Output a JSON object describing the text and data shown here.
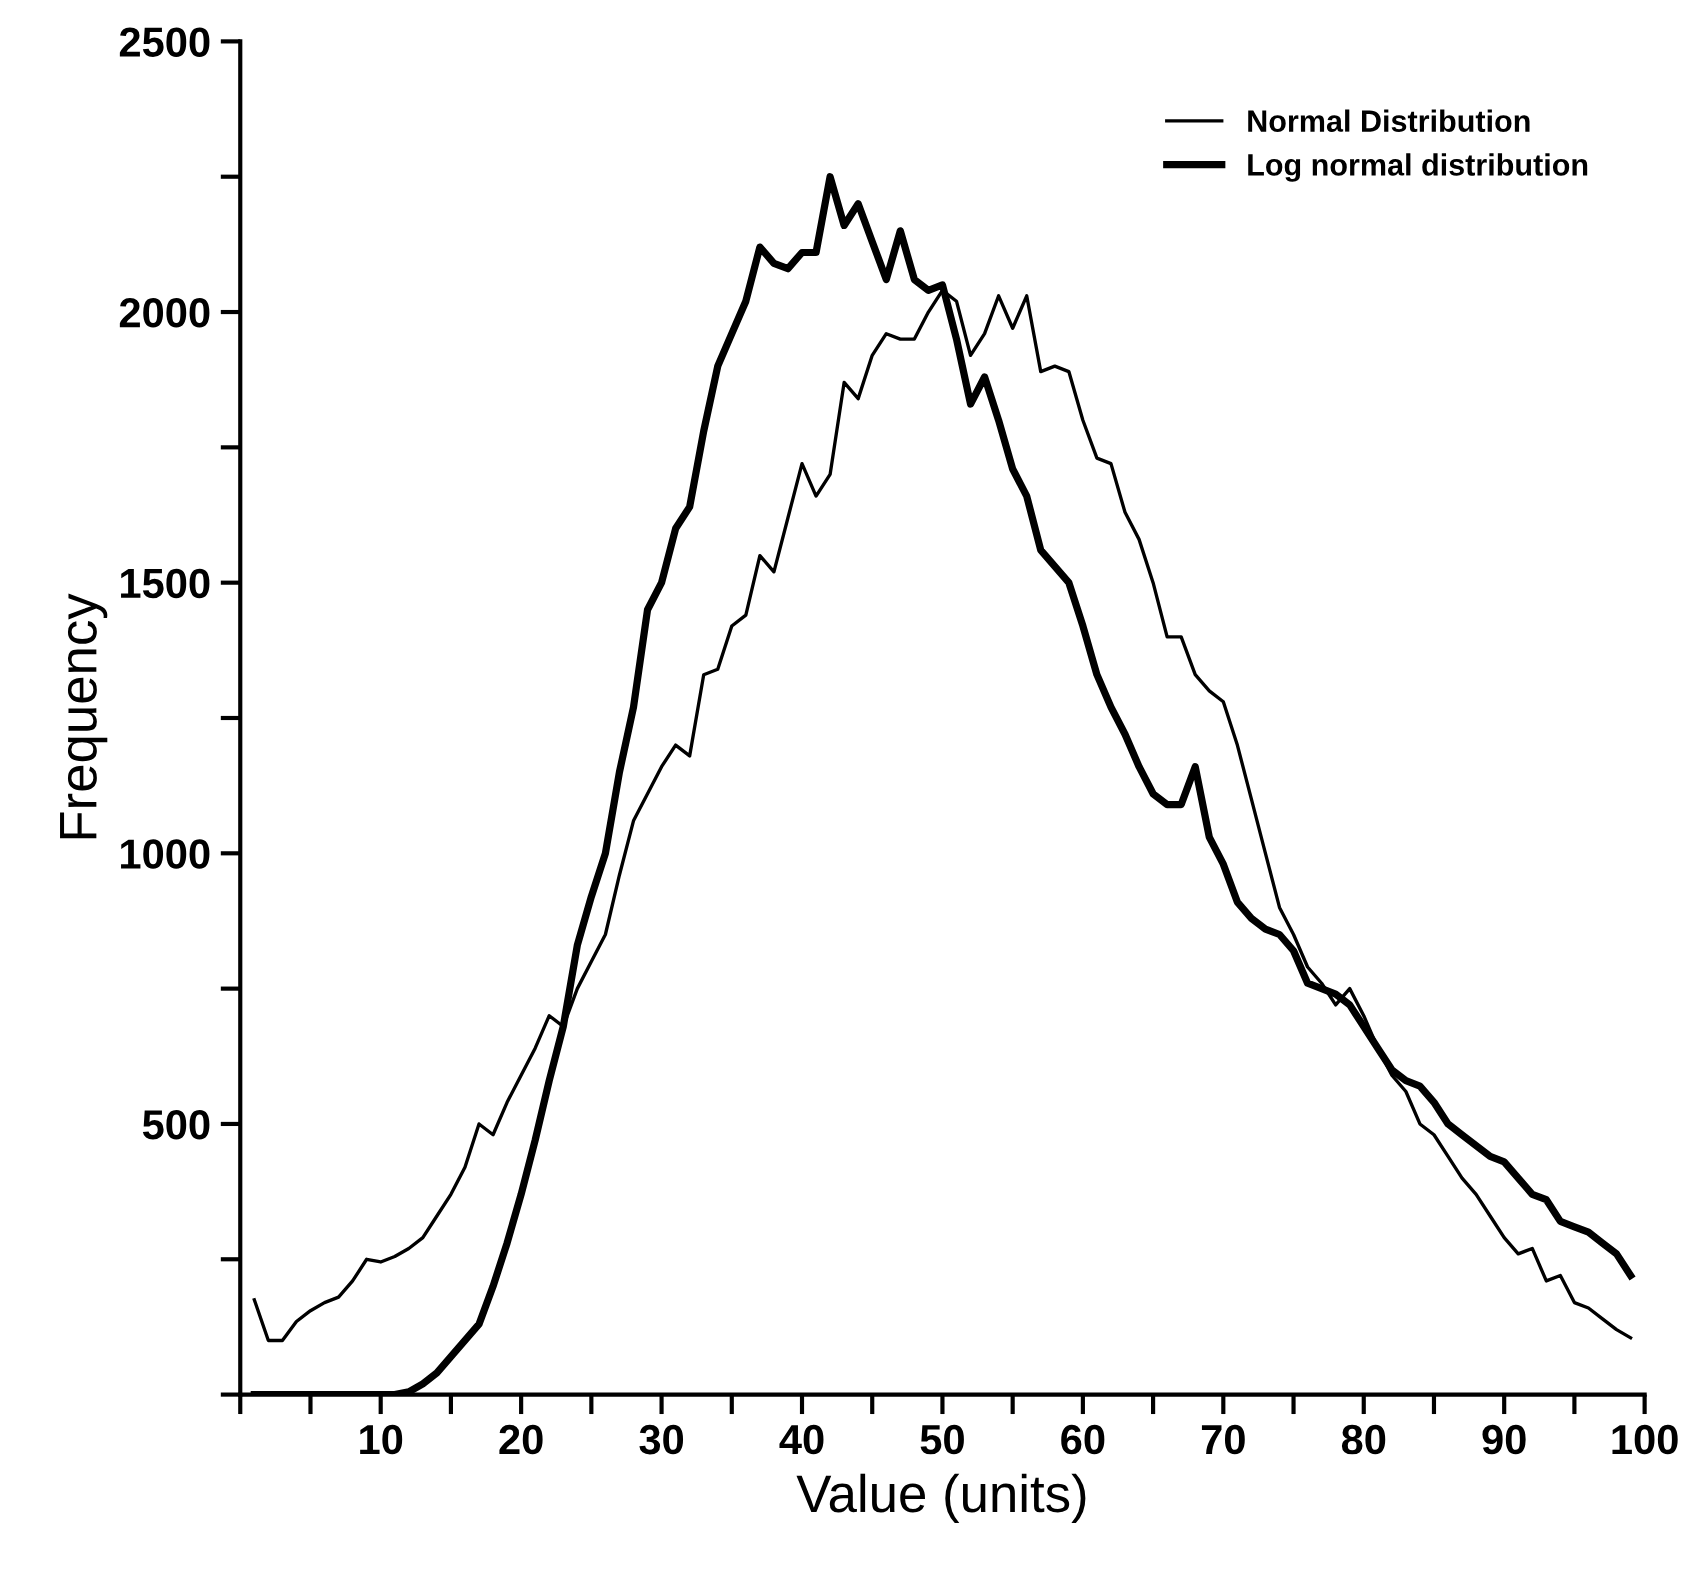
{
  "chart_data": {
    "type": "line",
    "xlabel": "Value (units)",
    "ylabel": "Frequency",
    "xlim": [
      0,
      100
    ],
    "ylim": [
      0,
      2500
    ],
    "xticks": [
      {
        "value": 0,
        "label": null
      },
      {
        "value": 5,
        "label": null
      },
      10,
      {
        "value": 15,
        "label": null
      },
      20,
      {
        "value": 25,
        "label": null
      },
      30,
      {
        "value": 35,
        "label": null
      },
      40,
      {
        "value": 45,
        "label": null
      },
      50,
      {
        "value": 55,
        "label": null
      },
      60,
      {
        "value": 65,
        "label": null
      },
      70,
      {
        "value": 75,
        "label": null
      },
      80,
      {
        "value": 85,
        "label": null
      },
      90,
      {
        "value": 95,
        "label": null
      },
      100
    ],
    "yticks": [
      {
        "value": 0,
        "label": null
      },
      {
        "value": 250,
        "label": null
      },
      500,
      {
        "value": 750,
        "label": null
      },
      1000,
      {
        "value": 1250,
        "label": null
      },
      1500,
      {
        "value": 1750,
        "label": null
      },
      2000,
      {
        "value": 2250,
        "label": null
      },
      2500
    ],
    "grid": false,
    "legend": "top right",
    "marker": "none",
    "line_style": "solid",
    "series": [
      {
        "name": "Normal Distribution",
        "color": "#000000",
        "x": [
          1,
          2,
          3,
          4,
          5,
          6,
          7,
          8,
          9,
          10,
          11,
          12,
          13,
          14,
          15,
          16,
          17,
          18,
          19,
          20,
          21,
          22,
          23,
          24,
          25,
          26,
          27,
          28,
          29,
          30,
          31,
          32,
          33,
          34,
          35,
          36,
          37,
          38,
          39,
          40,
          41,
          42,
          43,
          44,
          45,
          46,
          47,
          48,
          49,
          50,
          51,
          52,
          53,
          54,
          55,
          56,
          57,
          58,
          59,
          60,
          61,
          62,
          63,
          64,
          65,
          66,
          67,
          68,
          69,
          70,
          71,
          72,
          73,
          74,
          75,
          76,
          77,
          78,
          79,
          80,
          81,
          82,
          83,
          84,
          85,
          86,
          87,
          88,
          89,
          90,
          91,
          92,
          93,
          94,
          95,
          96,
          97,
          98,
          99
        ],
        "values": [
          175,
          100,
          100,
          135,
          155,
          170,
          180,
          210,
          250,
          245,
          255,
          270,
          290,
          330,
          370,
          420,
          500,
          480,
          540,
          590,
          640,
          700,
          680,
          750,
          800,
          850,
          960,
          1060,
          1110,
          1160,
          1200,
          1180,
          1330,
          1340,
          1420,
          1440,
          1550,
          1520,
          1620,
          1720,
          1660,
          1700,
          1870,
          1840,
          1920,
          1960,
          1950,
          1950,
          2000,
          2040,
          2020,
          1920,
          1960,
          2030,
          1970,
          2030,
          1890,
          1900,
          1890,
          1800,
          1730,
          1720,
          1630,
          1580,
          1500,
          1400,
          1400,
          1330,
          1300,
          1280,
          1200,
          1100,
          1000,
          900,
          850,
          790,
          760,
          720,
          750,
          700,
          640,
          590,
          560,
          500,
          480,
          440,
          400,
          370,
          330,
          290,
          260,
          270,
          210,
          220,
          170,
          160,
          140,
          120,
          105
        ]
      },
      {
        "name": "Log normal distribution",
        "color": "#000000",
        "x": [
          1,
          2,
          3,
          4,
          5,
          6,
          7,
          8,
          9,
          10,
          11,
          12,
          13,
          14,
          15,
          16,
          17,
          18,
          19,
          20,
          21,
          22,
          23,
          24,
          25,
          26,
          27,
          28,
          29,
          30,
          31,
          32,
          33,
          34,
          35,
          36,
          37,
          38,
          39,
          40,
          41,
          42,
          43,
          44,
          45,
          46,
          47,
          48,
          49,
          50,
          51,
          52,
          53,
          54,
          55,
          56,
          57,
          58,
          59,
          60,
          61,
          62,
          63,
          64,
          65,
          66,
          67,
          68,
          69,
          70,
          71,
          72,
          73,
          74,
          75,
          76,
          77,
          78,
          79,
          80,
          81,
          82,
          83,
          84,
          85,
          86,
          87,
          88,
          89,
          90,
          91,
          92,
          93,
          94,
          95,
          96,
          97,
          98,
          99
        ],
        "values": [
          0,
          0,
          0,
          0,
          0,
          0,
          0,
          0,
          0,
          0,
          0,
          5,
          20,
          40,
          70,
          100,
          130,
          200,
          280,
          370,
          470,
          580,
          680,
          830,
          920,
          1000,
          1150,
          1270,
          1450,
          1500,
          1600,
          1640,
          1780,
          1900,
          1960,
          2020,
          2120,
          2090,
          2080,
          2110,
          2110,
          2250,
          2160,
          2200,
          2130,
          2060,
          2150,
          2060,
          2040,
          2050,
          1950,
          1830,
          1880,
          1800,
          1710,
          1660,
          1560,
          1530,
          1500,
          1420,
          1330,
          1270,
          1220,
          1160,
          1110,
          1090,
          1090,
          1160,
          1030,
          980,
          910,
          880,
          860,
          850,
          820,
          760,
          750,
          740,
          720,
          680,
          640,
          600,
          580,
          570,
          540,
          500,
          480,
          460,
          440,
          430,
          400,
          370,
          360,
          320,
          310,
          300,
          280,
          260,
          220
        ]
      }
    ]
  }
}
